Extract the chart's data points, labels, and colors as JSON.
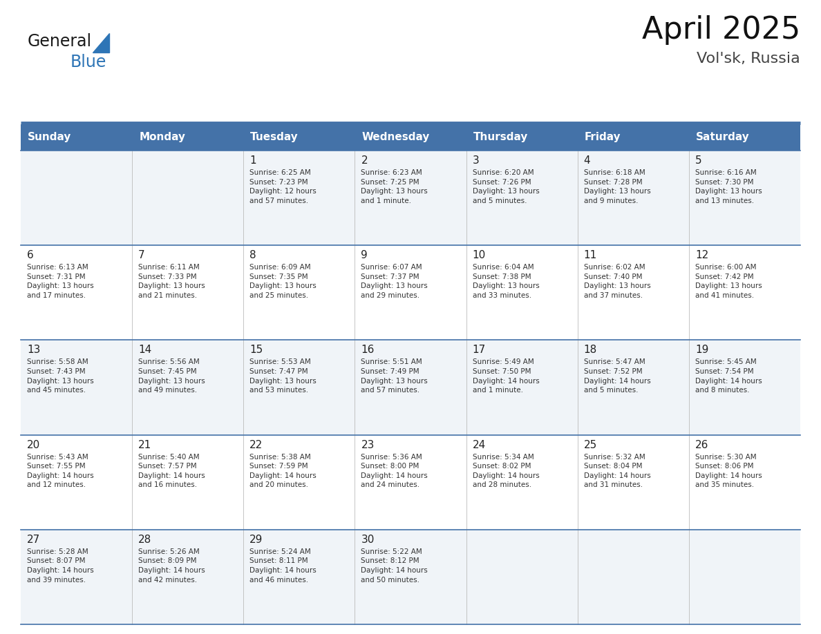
{
  "title": "April 2025",
  "subtitle": "Vol'sk, Russia",
  "header_color": "#4472A8",
  "header_text_color": "#FFFFFF",
  "days_of_week": [
    "Sunday",
    "Monday",
    "Tuesday",
    "Wednesday",
    "Thursday",
    "Friday",
    "Saturday"
  ],
  "background_color": "#FFFFFF",
  "cell_bg_light": "#F0F4F8",
  "cell_bg_white": "#FFFFFF",
  "day_number_color": "#222222",
  "text_color": "#333333",
  "line_color": "#4472A8",
  "logo_general_color": "#1a1a1a",
  "logo_blue_color": "#2E75B6",
  "logo_triangle_color": "#2E75B6",
  "title_fontsize": 32,
  "subtitle_fontsize": 16,
  "header_fontsize": 11,
  "day_num_fontsize": 11,
  "info_fontsize": 7.5,
  "weeks": [
    [
      {
        "day": null,
        "info": null
      },
      {
        "day": null,
        "info": null
      },
      {
        "day": 1,
        "info": "Sunrise: 6:25 AM\nSunset: 7:23 PM\nDaylight: 12 hours\nand 57 minutes."
      },
      {
        "day": 2,
        "info": "Sunrise: 6:23 AM\nSunset: 7:25 PM\nDaylight: 13 hours\nand 1 minute."
      },
      {
        "day": 3,
        "info": "Sunrise: 6:20 AM\nSunset: 7:26 PM\nDaylight: 13 hours\nand 5 minutes."
      },
      {
        "day": 4,
        "info": "Sunrise: 6:18 AM\nSunset: 7:28 PM\nDaylight: 13 hours\nand 9 minutes."
      },
      {
        "day": 5,
        "info": "Sunrise: 6:16 AM\nSunset: 7:30 PM\nDaylight: 13 hours\nand 13 minutes."
      }
    ],
    [
      {
        "day": 6,
        "info": "Sunrise: 6:13 AM\nSunset: 7:31 PM\nDaylight: 13 hours\nand 17 minutes."
      },
      {
        "day": 7,
        "info": "Sunrise: 6:11 AM\nSunset: 7:33 PM\nDaylight: 13 hours\nand 21 minutes."
      },
      {
        "day": 8,
        "info": "Sunrise: 6:09 AM\nSunset: 7:35 PM\nDaylight: 13 hours\nand 25 minutes."
      },
      {
        "day": 9,
        "info": "Sunrise: 6:07 AM\nSunset: 7:37 PM\nDaylight: 13 hours\nand 29 minutes."
      },
      {
        "day": 10,
        "info": "Sunrise: 6:04 AM\nSunset: 7:38 PM\nDaylight: 13 hours\nand 33 minutes."
      },
      {
        "day": 11,
        "info": "Sunrise: 6:02 AM\nSunset: 7:40 PM\nDaylight: 13 hours\nand 37 minutes."
      },
      {
        "day": 12,
        "info": "Sunrise: 6:00 AM\nSunset: 7:42 PM\nDaylight: 13 hours\nand 41 minutes."
      }
    ],
    [
      {
        "day": 13,
        "info": "Sunrise: 5:58 AM\nSunset: 7:43 PM\nDaylight: 13 hours\nand 45 minutes."
      },
      {
        "day": 14,
        "info": "Sunrise: 5:56 AM\nSunset: 7:45 PM\nDaylight: 13 hours\nand 49 minutes."
      },
      {
        "day": 15,
        "info": "Sunrise: 5:53 AM\nSunset: 7:47 PM\nDaylight: 13 hours\nand 53 minutes."
      },
      {
        "day": 16,
        "info": "Sunrise: 5:51 AM\nSunset: 7:49 PM\nDaylight: 13 hours\nand 57 minutes."
      },
      {
        "day": 17,
        "info": "Sunrise: 5:49 AM\nSunset: 7:50 PM\nDaylight: 14 hours\nand 1 minute."
      },
      {
        "day": 18,
        "info": "Sunrise: 5:47 AM\nSunset: 7:52 PM\nDaylight: 14 hours\nand 5 minutes."
      },
      {
        "day": 19,
        "info": "Sunrise: 5:45 AM\nSunset: 7:54 PM\nDaylight: 14 hours\nand 8 minutes."
      }
    ],
    [
      {
        "day": 20,
        "info": "Sunrise: 5:43 AM\nSunset: 7:55 PM\nDaylight: 14 hours\nand 12 minutes."
      },
      {
        "day": 21,
        "info": "Sunrise: 5:40 AM\nSunset: 7:57 PM\nDaylight: 14 hours\nand 16 minutes."
      },
      {
        "day": 22,
        "info": "Sunrise: 5:38 AM\nSunset: 7:59 PM\nDaylight: 14 hours\nand 20 minutes."
      },
      {
        "day": 23,
        "info": "Sunrise: 5:36 AM\nSunset: 8:00 PM\nDaylight: 14 hours\nand 24 minutes."
      },
      {
        "day": 24,
        "info": "Sunrise: 5:34 AM\nSunset: 8:02 PM\nDaylight: 14 hours\nand 28 minutes."
      },
      {
        "day": 25,
        "info": "Sunrise: 5:32 AM\nSunset: 8:04 PM\nDaylight: 14 hours\nand 31 minutes."
      },
      {
        "day": 26,
        "info": "Sunrise: 5:30 AM\nSunset: 8:06 PM\nDaylight: 14 hours\nand 35 minutes."
      }
    ],
    [
      {
        "day": 27,
        "info": "Sunrise: 5:28 AM\nSunset: 8:07 PM\nDaylight: 14 hours\nand 39 minutes."
      },
      {
        "day": 28,
        "info": "Sunrise: 5:26 AM\nSunset: 8:09 PM\nDaylight: 14 hours\nand 42 minutes."
      },
      {
        "day": 29,
        "info": "Sunrise: 5:24 AM\nSunset: 8:11 PM\nDaylight: 14 hours\nand 46 minutes."
      },
      {
        "day": 30,
        "info": "Sunrise: 5:22 AM\nSunset: 8:12 PM\nDaylight: 14 hours\nand 50 minutes."
      },
      {
        "day": null,
        "info": null
      },
      {
        "day": null,
        "info": null
      },
      {
        "day": null,
        "info": null
      }
    ]
  ]
}
